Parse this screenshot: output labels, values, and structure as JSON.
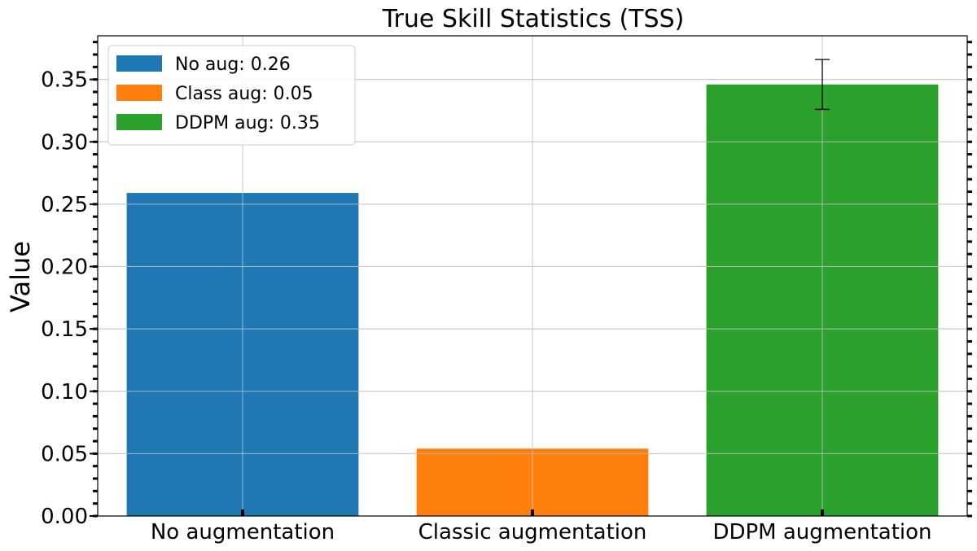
{
  "chart_data": {
    "type": "bar",
    "title": "True Skill Statistics (TSS)",
    "xlabel": "",
    "ylabel": "Value",
    "ylim": [
      0,
      0.385
    ],
    "yticks": [
      0.0,
      0.05,
      0.1,
      0.15,
      0.2,
      0.25,
      0.3,
      0.35
    ],
    "ytick_labels": [
      "0.00",
      "0.05",
      "0.10",
      "0.15",
      "0.20",
      "0.25",
      "0.30",
      "0.35"
    ],
    "categories": [
      "No augmentation",
      "Classic augmentation",
      "DDPM augmentation"
    ],
    "values": [
      0.259,
      0.054,
      0.346
    ],
    "errors": [
      null,
      null,
      0.02
    ],
    "colors": [
      "#1f77b4",
      "#ff7f0e",
      "#2ca02c"
    ],
    "grid": true,
    "legend": {
      "placement": "top-left",
      "entries": [
        {
          "label": "No aug: 0.26",
          "color": "#1f77b4"
        },
        {
          "label": "Class aug: 0.05",
          "color": "#ff7f0e"
        },
        {
          "label": "DDPM aug: 0.35",
          "color": "#2ca02c"
        }
      ]
    }
  }
}
